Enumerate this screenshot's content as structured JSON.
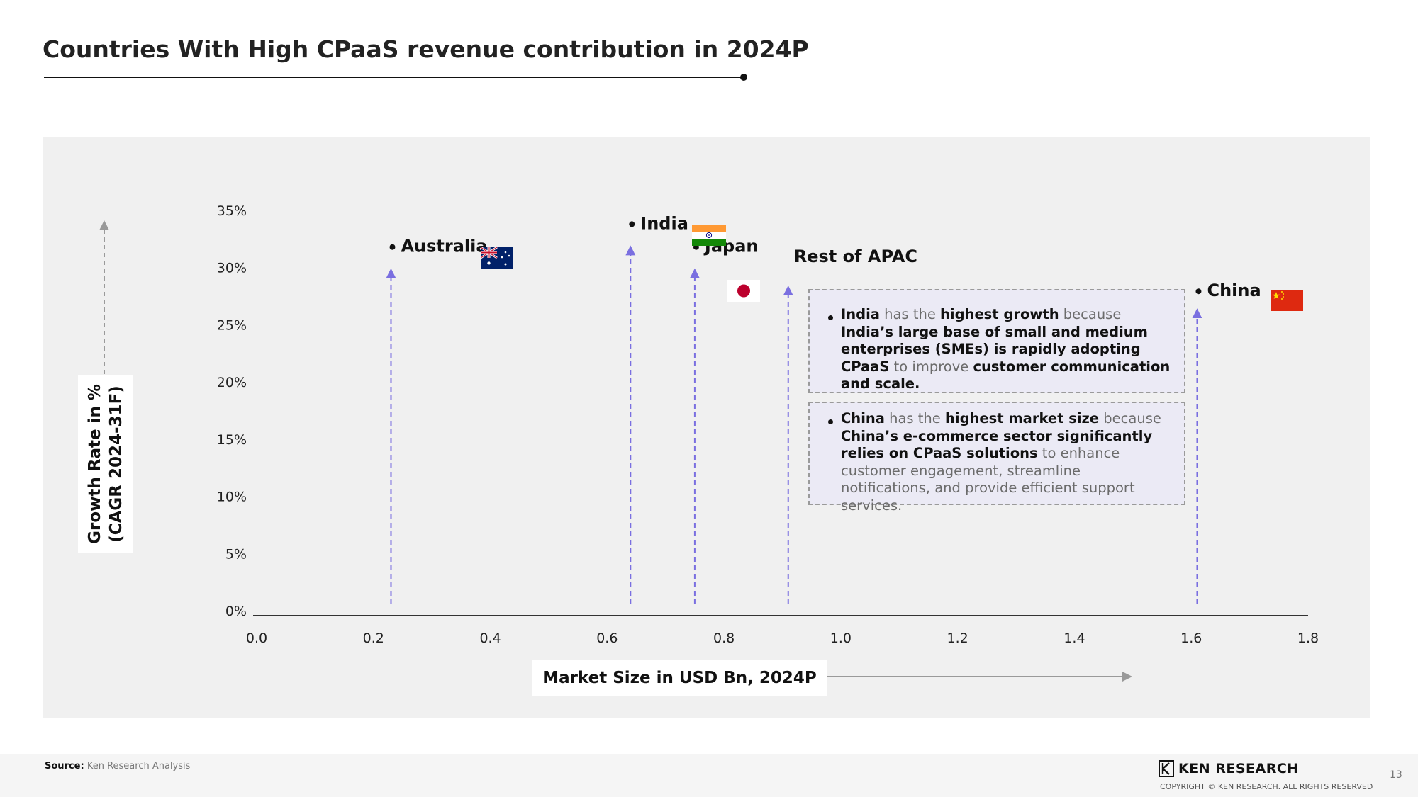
{
  "page": {
    "title": "Countries With High CPaaS revenue contribution in 2024P",
    "source_label": "Source:",
    "source_text": "Ken Research Analysis",
    "logo_text": "KEN RESEARCH",
    "copyright": "COPYRIGHT © KEN RESEARCH. ALL RIGHTS RESERVED",
    "page_number": "13"
  },
  "chart_data": {
    "type": "scatter",
    "title": "",
    "xlabel": "Market Size in USD Bn, 2024P",
    "ylabel_line1": "Growth Rate in %",
    "ylabel_line2": "(CAGR 2024-31F)",
    "xlim": [
      0.0,
      1.8
    ],
    "ylim": [
      0,
      35
    ],
    "x_ticks": [
      "0.0",
      "0.2",
      "0.4",
      "0.6",
      "0.8",
      "1.0",
      "1.2",
      "1.4",
      "1.6",
      "1.8"
    ],
    "y_ticks": [
      "0%",
      "5%",
      "10%",
      "15%",
      "20%",
      "25%",
      "30%",
      "35%"
    ],
    "grid": false,
    "points": [
      {
        "name": "Australia",
        "x": 0.23,
        "y": 30.0
      },
      {
        "name": "India",
        "x": 0.64,
        "y": 32.0
      },
      {
        "name": "Japan",
        "x": 0.75,
        "y": 30.0
      },
      {
        "name": "Rest of APAC",
        "x": 0.91,
        "y": 28.5
      },
      {
        "name": "China",
        "x": 1.61,
        "y": 26.5
      }
    ],
    "arrow_color": "#7a6fe0"
  },
  "notes": {
    "india": {
      "parts": [
        {
          "t": "India",
          "b": true
        },
        {
          "t": " has the ",
          "b": false
        },
        {
          "t": "highest growth",
          "b": true
        },
        {
          "t": " because ",
          "b": false
        },
        {
          "t": "India’s large base of small and medium enterprises (SMEs) is rapidly adopting CPaaS",
          "b": true
        },
        {
          "t": " to improve ",
          "b": false
        },
        {
          "t": "customer communication and scale.",
          "b": true
        }
      ]
    },
    "china": {
      "parts": [
        {
          "t": "China",
          "b": true
        },
        {
          "t": " has the ",
          "b": false
        },
        {
          "t": "highest market size",
          "b": true
        },
        {
          "t": " because ",
          "b": false
        },
        {
          "t": "China’s e-commerce sector significantly relies on CPaaS solutions",
          "b": true
        },
        {
          "t": " to enhance customer engagement, streamline notifications, and provide efficient support services.",
          "b": false
        }
      ]
    }
  },
  "flags": {
    "australia": "australia-flag-icon",
    "india": "india-flag-icon",
    "japan": "japan-flag-icon",
    "china": "china-flag-icon"
  }
}
